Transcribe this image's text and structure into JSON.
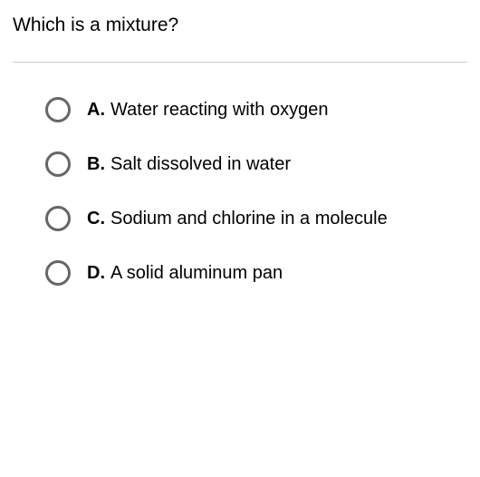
{
  "question": {
    "text": "Which is a mixture?"
  },
  "options": [
    {
      "letter": "A.",
      "text": "Water reacting with oxygen"
    },
    {
      "letter": "B.",
      "text": "Salt dissolved in water"
    },
    {
      "letter": "C.",
      "text": "Sodium and chlorine in a molecule"
    },
    {
      "letter": "D.",
      "text": "A solid aluminum pan"
    }
  ],
  "styling": {
    "background_color": "#ffffff",
    "text_color": "#000000",
    "divider_color": "#cccccc",
    "radio_border_color": "#666666",
    "question_fontsize": 21,
    "option_fontsize": 20,
    "radio_size": 28,
    "radio_border_width": 3,
    "option_spacing": 32
  }
}
